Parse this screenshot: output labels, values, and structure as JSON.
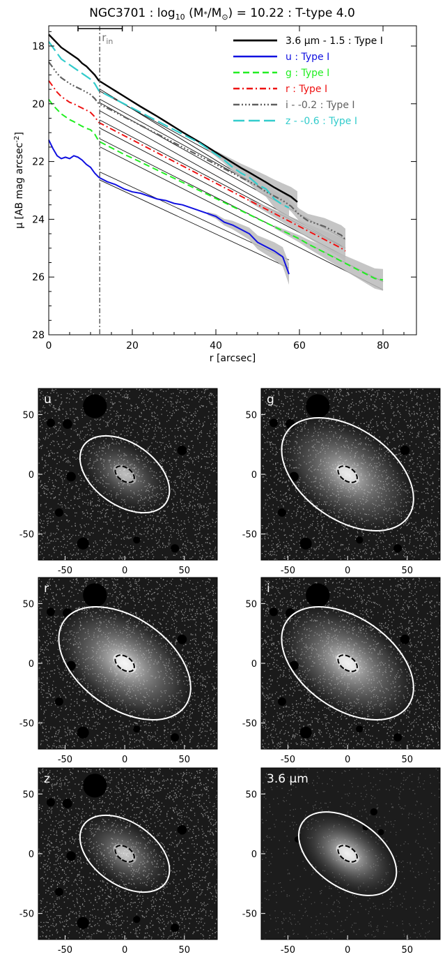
{
  "figure": {
    "title_parts": [
      "NGC3701 : log",
      "10",
      " (M",
      "*",
      "/M",
      "⊙",
      ") = 10.22 : T-type 4.0"
    ]
  },
  "chart_data": [
    {
      "type": "line",
      "xlabel": "r [arcsec]",
      "ylabel_parts": [
        "μ [AB mag arcsec",
        "-2",
        "]"
      ],
      "xlim": [
        0,
        88
      ],
      "ylim": [
        28,
        17.3
      ],
      "y_inverted": true,
      "xticks": [
        0,
        20,
        40,
        60,
        80
      ],
      "yticks": [
        18,
        20,
        22,
        24,
        26,
        28
      ],
      "r_in": {
        "label": "in",
        "prefix": "r",
        "x": 12.2,
        "bar": [
          7,
          17.6
        ]
      },
      "legend_position": "top-right",
      "series": [
        {
          "name": "3.6 μm - 1.5 : Type I",
          "color": "#000000",
          "dash": "",
          "width": 2.4,
          "x": [
            0,
            1,
            2,
            3,
            4,
            5,
            6,
            7,
            8,
            9,
            10,
            11,
            12,
            14,
            16,
            18,
            20,
            22,
            24,
            26,
            28,
            30,
            32,
            34,
            36,
            38,
            40,
            42,
            44,
            46,
            48,
            50,
            52,
            54,
            56,
            58,
            59.5
          ],
          "y": [
            17.6,
            17.75,
            17.9,
            18.05,
            18.15,
            18.25,
            18.35,
            18.45,
            18.6,
            18.7,
            18.85,
            19.0,
            19.2,
            19.38,
            19.56,
            19.74,
            19.92,
            20.1,
            20.27,
            20.44,
            20.62,
            20.8,
            20.98,
            21.15,
            21.32,
            21.5,
            21.68,
            21.86,
            22.04,
            22.22,
            22.38,
            22.55,
            22.72,
            22.9,
            23.06,
            23.22,
            23.4
          ],
          "fit": {
            "x": [
              12.2,
              59.5
            ],
            "y": [
              19.35,
              23.55
            ]
          }
        },
        {
          "name": "u : Type I",
          "color": "#1010e0",
          "dash": "",
          "width": 2,
          "x": [
            0,
            1,
            2,
            3,
            4,
            5,
            6,
            7,
            8,
            9,
            10,
            11,
            12,
            14,
            16,
            18,
            20,
            22,
            24,
            26,
            28,
            30,
            32,
            34,
            36,
            38,
            40,
            42,
            44,
            46,
            48,
            50,
            52,
            54,
            56,
            57.5
          ],
          "y": [
            21.25,
            21.55,
            21.8,
            21.9,
            21.85,
            21.9,
            21.8,
            21.85,
            21.95,
            22.1,
            22.2,
            22.4,
            22.55,
            22.7,
            22.8,
            22.95,
            23.05,
            23.1,
            23.2,
            23.3,
            23.35,
            23.45,
            23.5,
            23.6,
            23.7,
            23.8,
            23.9,
            24.1,
            24.2,
            24.35,
            24.5,
            24.8,
            24.95,
            25.1,
            25.3,
            25.9
          ],
          "fit": {
            "x": [
              12.2,
              57.5
            ],
            "y": [
              22.5,
              25.55
            ]
          }
        },
        {
          "name": "g : Type I",
          "color": "#22ee22",
          "dash": "9,5",
          "width": 2,
          "x": [
            0,
            1,
            2,
            3,
            4,
            5,
            6,
            7,
            8,
            9,
            10,
            11,
            12,
            14,
            16,
            18,
            20,
            22,
            24,
            26,
            28,
            30,
            32,
            34,
            36,
            38,
            40,
            42,
            44,
            46,
            48,
            50,
            52,
            54,
            56,
            58,
            60,
            62,
            64,
            66,
            68,
            70,
            72,
            74,
            76,
            78,
            80
          ],
          "y": [
            19.85,
            20.05,
            20.2,
            20.35,
            20.45,
            20.55,
            20.62,
            20.7,
            20.78,
            20.85,
            20.9,
            21.05,
            21.3,
            21.45,
            21.6,
            21.75,
            21.88,
            22.02,
            22.16,
            22.3,
            22.44,
            22.58,
            22.72,
            22.86,
            23.0,
            23.14,
            23.28,
            23.42,
            23.56,
            23.7,
            23.84,
            23.98,
            24.12,
            24.26,
            24.4,
            24.54,
            24.68,
            24.85,
            25.0,
            25.15,
            25.3,
            25.45,
            25.6,
            25.75,
            25.9,
            26.05,
            26.1
          ],
          "fit": {
            "x": [
              12.2,
              80
            ],
            "y": [
              21.35,
              26.3
            ]
          }
        },
        {
          "name": "r : Type I",
          "color": "#ee1111",
          "dash": "9,4,2,4",
          "width": 2,
          "x": [
            0,
            1,
            2,
            3,
            4,
            5,
            6,
            7,
            8,
            9,
            10,
            11,
            12,
            14,
            16,
            18,
            20,
            22,
            24,
            26,
            28,
            30,
            32,
            34,
            36,
            38,
            40,
            42,
            44,
            46,
            48,
            50,
            52,
            54,
            56,
            58,
            60,
            62,
            64,
            66,
            68,
            70,
            71
          ],
          "y": [
            19.2,
            19.4,
            19.6,
            19.75,
            19.85,
            19.95,
            20.0,
            20.08,
            20.15,
            20.22,
            20.3,
            20.45,
            20.65,
            20.8,
            20.95,
            21.1,
            21.25,
            21.4,
            21.55,
            21.7,
            21.85,
            22.0,
            22.15,
            22.3,
            22.45,
            22.6,
            22.75,
            22.9,
            23.05,
            23.2,
            23.35,
            23.5,
            23.65,
            23.8,
            23.95,
            24.1,
            24.25,
            24.4,
            24.55,
            24.7,
            24.85,
            25.0,
            25.1
          ],
          "fit": {
            "x": [
              12.2,
              71
            ],
            "y": [
              20.7,
              25.15
            ]
          }
        },
        {
          "name": "i - -0.2 : Type I",
          "color": "#606060",
          "dash": "9,3,2,3,2,3,2,3",
          "width": 2.2,
          "x": [
            0,
            1,
            2,
            3,
            4,
            5,
            6,
            7,
            8,
            9,
            10,
            11,
            12,
            14,
            16,
            18,
            20,
            22,
            24,
            26,
            28,
            30,
            32,
            34,
            36,
            38,
            40,
            42,
            44,
            46,
            48,
            50,
            52,
            54,
            56,
            58,
            60,
            62,
            64,
            66,
            68,
            70,
            71
          ],
          "y": [
            18.55,
            18.75,
            18.95,
            19.1,
            19.2,
            19.3,
            19.38,
            19.45,
            19.52,
            19.6,
            19.68,
            19.82,
            20.0,
            20.15,
            20.3,
            20.45,
            20.6,
            20.75,
            20.9,
            21.05,
            21.2,
            21.35,
            21.5,
            21.65,
            21.8,
            21.95,
            22.1,
            22.25,
            22.4,
            22.55,
            22.7,
            22.85,
            23.05,
            23.2,
            23.35,
            23.55,
            23.85,
            24.05,
            24.15,
            24.25,
            24.4,
            24.55,
            24.7
          ],
          "fit": {
            "x": [
              12.2,
              71
            ],
            "y": [
              20.1,
              24.85
            ]
          }
        },
        {
          "name": "z - -0.6 : Type I",
          "color": "#33cccc",
          "dash": "16,6",
          "width": 2.2,
          "x": [
            0,
            1,
            2,
            3,
            4,
            5,
            6,
            7,
            8,
            9,
            10,
            11,
            12,
            14,
            16,
            18,
            20,
            22,
            24,
            26,
            28,
            30,
            32,
            34,
            36,
            38,
            40,
            42,
            44,
            46,
            48,
            50,
            52,
            54,
            56,
            57.5
          ],
          "y": [
            17.85,
            18.05,
            18.25,
            18.45,
            18.55,
            18.65,
            18.75,
            18.85,
            18.95,
            19.05,
            19.15,
            19.3,
            19.55,
            19.7,
            19.85,
            20.0,
            20.15,
            20.3,
            20.45,
            20.6,
            20.75,
            20.9,
            21.05,
            21.2,
            21.35,
            21.55,
            21.75,
            21.95,
            22.2,
            22.4,
            22.55,
            22.8,
            22.95,
            23.3,
            23.5,
            23.6
          ],
          "fit": {
            "x": [
              12.2,
              57.5
            ],
            "y": [
              19.7,
              23.3
            ]
          }
        }
      ]
    },
    {
      "type": "image-grid",
      "panels": [
        {
          "label": "u",
          "xticks": [
            -50,
            0,
            50
          ],
          "yticks": [
            50,
            0,
            -50
          ],
          "ellipse": {
            "a": 42,
            "b": 26,
            "angle_deg": 55
          },
          "inner": {
            "a": 9,
            "b": 5.5,
            "angle_deg": 55
          },
          "brightness": 0.55,
          "halo": 0.35,
          "stars": [
            [
              -25,
              57,
              10
            ],
            [
              -48,
              42,
              4
            ],
            [
              -62,
              43,
              3.5
            ],
            [
              -45,
              -2,
              4
            ],
            [
              48,
              20,
              4
            ],
            [
              -55,
              -32,
              3.5
            ],
            [
              -35,
              -58,
              5
            ],
            [
              42,
              -62,
              3.5
            ],
            [
              10,
              -55,
              3
            ]
          ]
        },
        {
          "label": "g",
          "xticks": [
            -50,
            0,
            50
          ],
          "yticks": [
            50,
            0,
            -50
          ],
          "ellipse": {
            "a": 62,
            "b": 38,
            "angle_deg": 55
          },
          "inner": {
            "a": 9,
            "b": 5.5,
            "angle_deg": 55
          },
          "brightness": 0.8,
          "halo": 0.6,
          "stars": [
            [
              -25,
              57,
              10
            ],
            [
              -48,
              42,
              4
            ],
            [
              -62,
              43,
              3.5
            ],
            [
              -45,
              -2,
              4
            ],
            [
              48,
              20,
              4
            ],
            [
              -55,
              -32,
              3.5
            ],
            [
              -35,
              -58,
              5
            ],
            [
              42,
              -62,
              3.5
            ],
            [
              10,
              -55,
              3
            ]
          ]
        },
        {
          "label": "r",
          "xticks": [
            -50,
            0,
            50
          ],
          "yticks": [
            50,
            0,
            -50
          ],
          "ellipse": {
            "a": 62,
            "b": 38,
            "angle_deg": 55
          },
          "inner": {
            "a": 9,
            "b": 5.5,
            "angle_deg": 55
          },
          "brightness": 0.9,
          "halo": 0.7,
          "stars": [
            [
              -25,
              57,
              10
            ],
            [
              -48,
              42,
              4
            ],
            [
              -62,
              43,
              3.5
            ],
            [
              -45,
              -2,
              4
            ],
            [
              48,
              20,
              4
            ],
            [
              -55,
              -32,
              3.5
            ],
            [
              -35,
              -58,
              5
            ],
            [
              42,
              -62,
              3.5
            ],
            [
              10,
              -55,
              3
            ]
          ]
        },
        {
          "label": "i",
          "xticks": [
            -50,
            0,
            50
          ],
          "yticks": [
            50,
            0,
            -50
          ],
          "ellipse": {
            "a": 62,
            "b": 38,
            "angle_deg": 55
          },
          "inner": {
            "a": 9,
            "b": 5.5,
            "angle_deg": 55
          },
          "brightness": 0.85,
          "halo": 0.65,
          "stars": [
            [
              -25,
              57,
              10
            ],
            [
              -48,
              42,
              4
            ],
            [
              -62,
              43,
              3.5
            ],
            [
              -45,
              -2,
              4
            ],
            [
              48,
              20,
              4
            ],
            [
              -55,
              -32,
              3.5
            ],
            [
              -35,
              -58,
              5
            ],
            [
              42,
              -62,
              3.5
            ],
            [
              10,
              -55,
              3
            ]
          ]
        },
        {
          "label": "z",
          "xticks": [
            -50,
            0,
            50
          ],
          "yticks": [
            50,
            0,
            -50
          ],
          "ellipse": {
            "a": 42,
            "b": 26,
            "angle_deg": 55
          },
          "inner": {
            "a": 9,
            "b": 5.5,
            "angle_deg": 55
          },
          "brightness": 0.6,
          "halo": 0.4,
          "stars": [
            [
              -25,
              57,
              10
            ],
            [
              -48,
              42,
              4
            ],
            [
              -62,
              43,
              3.5
            ],
            [
              -45,
              -2,
              4
            ],
            [
              48,
              20,
              4
            ],
            [
              -55,
              -32,
              3.5
            ],
            [
              -35,
              -58,
              5
            ],
            [
              42,
              -62,
              3.5
            ],
            [
              10,
              -55,
              3
            ]
          ]
        },
        {
          "label": "3.6 μm",
          "xticks": [
            -50,
            0,
            50
          ],
          "yticks": [
            50,
            0,
            -50
          ],
          "ellipse": {
            "a": 46,
            "b": 28,
            "angle_deg": 55
          },
          "inner": {
            "a": 9,
            "b": 5.5,
            "angle_deg": 55
          },
          "brightness": 0.85,
          "halo": 0.45,
          "smooth": true,
          "stars": [
            [
              22,
              35,
              3
            ],
            [
              15,
              22,
              2.5
            ],
            [
              28,
              18,
              2.5
            ],
            [
              -42,
              12,
              2.5
            ]
          ]
        }
      ]
    }
  ]
}
